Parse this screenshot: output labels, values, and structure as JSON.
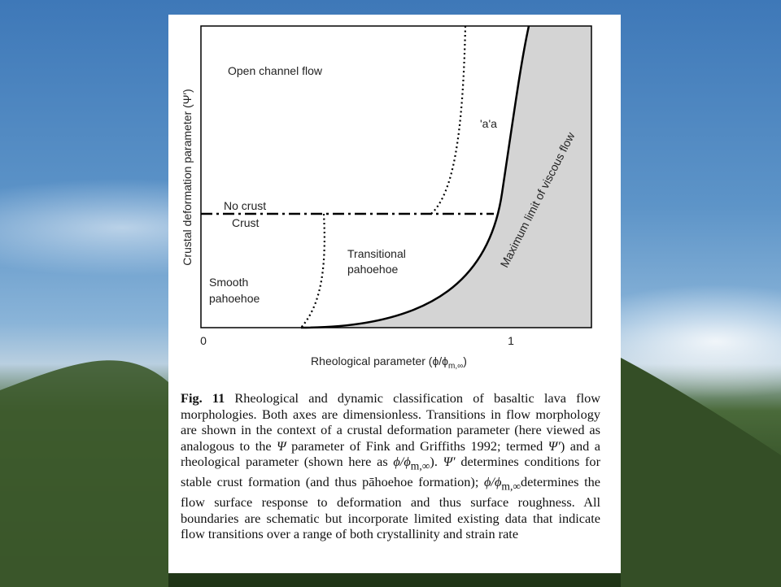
{
  "figure": {
    "y_axis_label": "Crustal deformation parameter (Ψ′)",
    "x_axis_label": [
      "Rheological parameter (ϕ/ϕ",
      "m,∞",
      ")"
    ],
    "x_tick_labels": [
      "0",
      "1"
    ],
    "regions": {
      "open_channel": "Open channel flow",
      "aa": "'a'a",
      "no_crust": "No crust",
      "crust": "Crust",
      "transitional": [
        "Transitional",
        "pahoehoe"
      ],
      "smooth": [
        "Smooth",
        "pahoehoe"
      ],
      "max_limit": "Maximum limit of viscous flow"
    }
  },
  "caption": {
    "label": "Fig. 11",
    "segments": [
      " Rheological and dynamic classification of basaltic lava flow morphologies. Both axes are dimensionless. Transitions in flow morphology are shown in the context of a crustal deformation parameter (here viewed as analogous to the ",
      "Ψ",
      " parameter of Fink and Griffiths 1992; termed ",
      "Ψ′",
      ") and a rheological parameter (shown here as ",
      "ϕ/ϕ",
      "m,∞",
      "). ",
      "Ψ′",
      " determines conditions for stable crust formation (and thus pāhoehoe formation); ",
      "ϕ/ϕ",
      "m,∞",
      "determines the flow surface response to deformation and thus surface roughness. All boundaries are schematic but incorporate limited existing data that indicate flow transitions over a range of both crystallinity and strain rate"
    ]
  }
}
